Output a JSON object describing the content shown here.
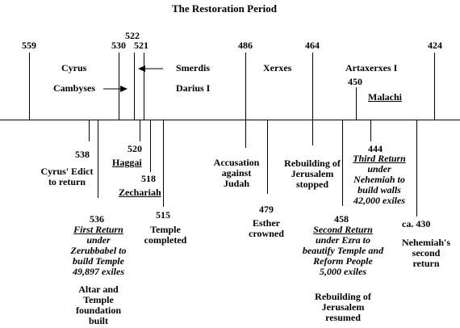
{
  "title": "The Restoration Period",
  "years": {
    "y559": "559",
    "y530": "530",
    "y522": "522",
    "y521": "521",
    "y486": "486",
    "y464": "464",
    "y424": "424",
    "y450": "450",
    "y538": "538",
    "y520": "520",
    "y518": "518",
    "y515": "515",
    "y536": "536",
    "y479": "479",
    "y458": "458",
    "y444": "444",
    "y430": "ca. 430"
  },
  "rulers": {
    "cyrus": "Cyrus",
    "cambyses": "Cambyses",
    "smerdis": "Smerdis",
    "darius": "Darius I",
    "xerxes": "Xerxes",
    "artaxerxes": "Artaxerxes I",
    "malachi": "Malachi"
  },
  "events": {
    "cyrus_edict": [
      "Cyrus' Edict",
      "to return"
    ],
    "haggai": "Haggai",
    "zechariah": "Zechariah",
    "temple_completed": [
      "Temple",
      "completed"
    ],
    "first_return": [
      "First Return",
      "under",
      "Zerubbabel to",
      "build Temple",
      "49,897 exiles"
    ],
    "altar": [
      "Altar and",
      "Temple",
      "foundation",
      "built"
    ],
    "accusation": [
      "Accusation",
      "against",
      "Judah"
    ],
    "esther": [
      "Esther",
      "crowned"
    ],
    "rebuilding_stopped": [
      "Rebuilding of",
      "Jerusalem",
      "stopped"
    ],
    "second_return": [
      "Second Return",
      "under Ezra to",
      "beautify Temple and",
      "Reform People",
      "5,000 exiles"
    ],
    "rebuilding_resumed": [
      "Rebuilding of",
      "Jerusalem",
      "resumed"
    ],
    "third_return": [
      "Third Return",
      "under",
      "Nehemiah to",
      "build walls",
      "42,000 exiles"
    ],
    "nehemiah_return": [
      "Nehemiah's",
      "second",
      "return"
    ]
  }
}
